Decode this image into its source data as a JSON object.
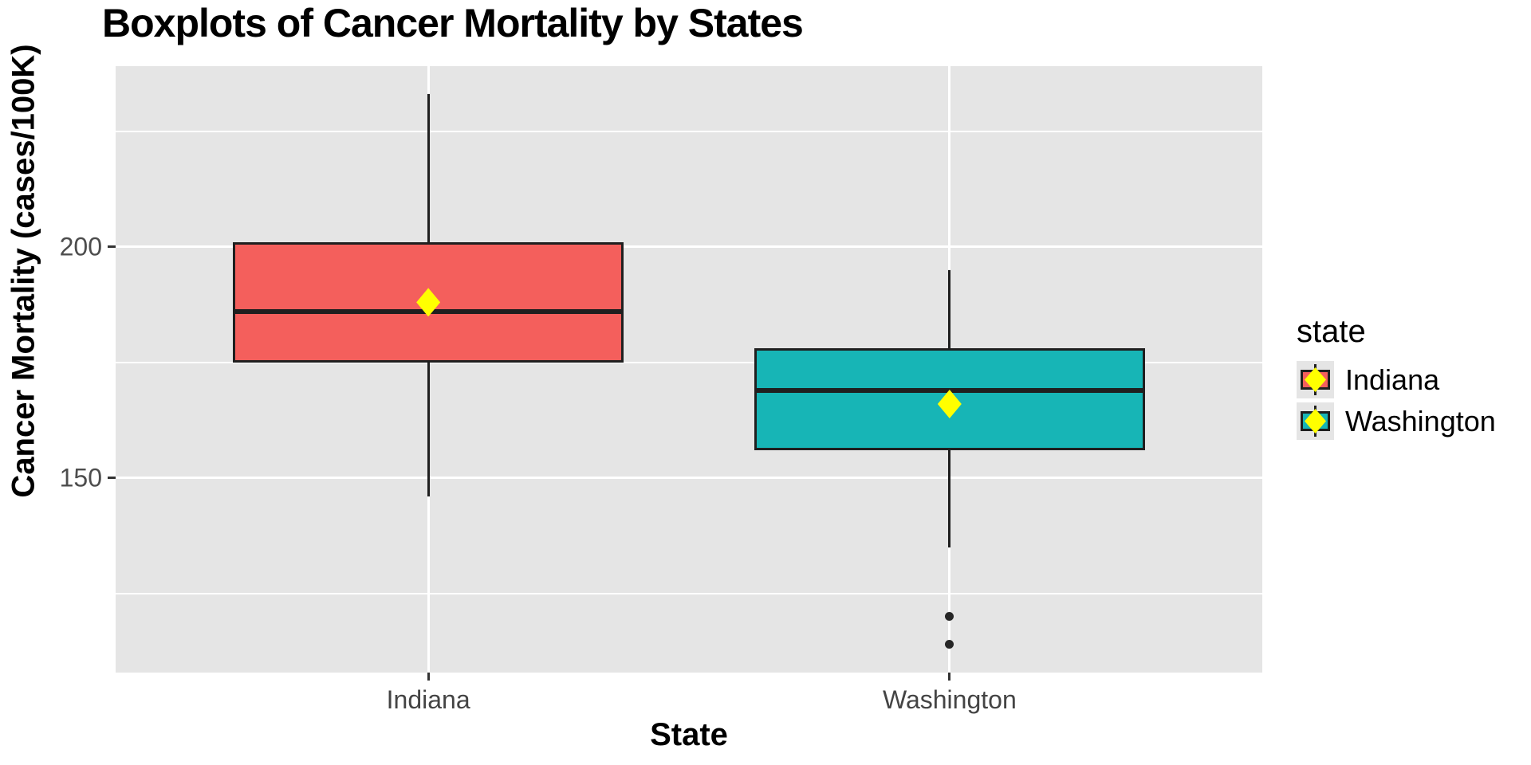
{
  "title": "Boxplots of Cancer Mortality by States",
  "axes": {
    "x_title": "State",
    "y_title": "Cancer Mortality (cases/100K)"
  },
  "legend": {
    "title": "state",
    "position": "right",
    "entries": [
      {
        "label": "Indiana",
        "color": "#F45F5C"
      },
      {
        "label": "Washington",
        "color": "#17B5B6"
      }
    ]
  },
  "chart_data": {
    "type": "boxplot",
    "title": "Boxplots of Cancer Mortality by States",
    "xlabel": "State",
    "ylabel": "Cancer Mortality (cases/100K)",
    "categories": [
      "Indiana",
      "Washington"
    ],
    "ylim": [
      107.9,
      239.1
    ],
    "yticks": [
      150,
      200
    ],
    "yticks_minor": [
      125,
      175,
      225
    ],
    "grid": "white major+minor horizontal lines and major vertical lines on gray panel",
    "panel_background": "#E5E5E5",
    "gridline_color": "#FFFFFF",
    "line_color": "#1F1F1F",
    "tick_label_color": "#4D4D4D",
    "mean_marker": {
      "shape": "diamond",
      "color": "#FFFF00"
    },
    "outlier_color": "#262626",
    "series": [
      {
        "name": "Indiana",
        "fill": "#F45F5C",
        "min": 146,
        "q1": 175,
        "median": 186,
        "q3": 201,
        "max": 233,
        "mean": 188,
        "outliers": []
      },
      {
        "name": "Washington",
        "fill": "#17B5B6",
        "min": 135,
        "q1": 156,
        "median": 169,
        "q3": 178,
        "max": 195,
        "mean": 166,
        "outliers": [
          120,
          114
        ]
      }
    ]
  }
}
